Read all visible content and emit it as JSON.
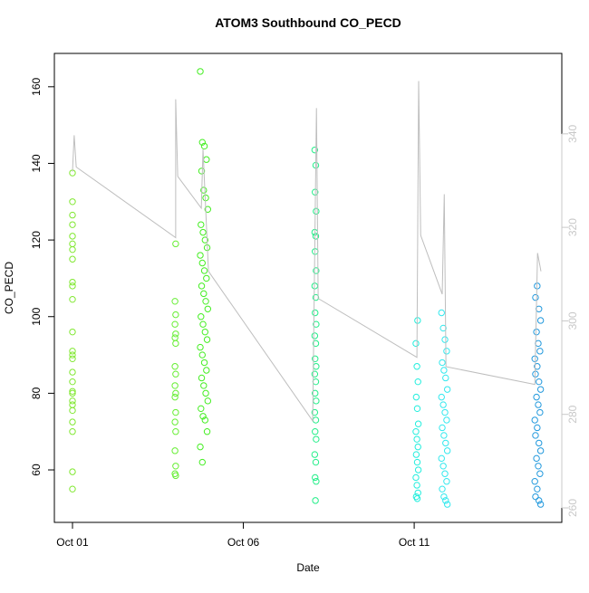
{
  "chart_data": {
    "type": "scatter",
    "title": "ATOM3 Southbound CO_PECD",
    "xlabel": "Date",
    "ylabel": "CO_PECD",
    "xlim": [
      0.47,
      15.32
    ],
    "xticks": [
      {
        "value": 1,
        "label": "Oct 01"
      },
      {
        "value": 6,
        "label": "Oct 06"
      },
      {
        "value": 11,
        "label": "Oct 11"
      }
    ],
    "ylim": [
      46.3,
      168.7
    ],
    "yticks": [
      60,
      80,
      100,
      120,
      140,
      160
    ],
    "y2lim": [
      256.9,
      357.2
    ],
    "y2ticks": [
      260,
      280,
      300,
      320,
      340
    ],
    "y2color": "#c8c8c8",
    "series": [
      {
        "color": "#80e830",
        "x": [
          1,
          1,
          1,
          1,
          1,
          1,
          1,
          1,
          1,
          1,
          1,
          1,
          1,
          1,
          1,
          1,
          1,
          1,
          1,
          1,
          1,
          1,
          1,
          1,
          1,
          1
        ],
        "values": [
          137.5,
          130,
          126.5,
          124,
          121,
          119,
          117.5,
          115,
          109,
          108,
          104.5,
          96,
          91,
          90,
          89,
          85.5,
          83,
          80.5,
          80,
          78,
          77,
          75.5,
          72.5,
          70,
          59.5,
          55
        ]
      },
      {
        "color": "#66ee33",
        "x": [
          4.02,
          4.0,
          4.02,
          4.0,
          4.02,
          4.0,
          4.02,
          4.0,
          4.02,
          4.0,
          4.02,
          4.0,
          4.02,
          4.0,
          4.02,
          4.0,
          4.02,
          4.0,
          4.02
        ],
        "values": [
          119,
          104,
          100.5,
          98,
          95.5,
          94.5,
          93,
          87,
          85,
          82,
          80,
          79,
          75,
          72.5,
          70,
          65,
          61,
          59,
          58.5
        ]
      },
      {
        "color": "#44ee22",
        "x": [
          4.74,
          4.8,
          4.86,
          4.92,
          4.78,
          4.84,
          4.9,
          4.96,
          4.76,
          4.82,
          4.88,
          4.94,
          4.74,
          4.8,
          4.86,
          4.92,
          4.78,
          4.84,
          4.9,
          4.96,
          4.76,
          4.82,
          4.88,
          4.94,
          4.74,
          4.8,
          4.86,
          4.92,
          4.78,
          4.84,
          4.9,
          4.96,
          4.76,
          4.82,
          4.88,
          4.94,
          4.74,
          4.8
        ],
        "values": [
          164,
          145.5,
          144.5,
          141,
          138,
          133,
          131,
          128,
          124,
          122,
          120,
          118,
          116,
          114,
          112,
          110,
          108,
          106,
          104,
          102,
          100,
          98,
          96,
          94,
          92,
          90,
          88,
          86,
          84,
          82,
          80,
          78,
          76,
          74,
          73,
          70,
          66,
          62
        ]
      },
      {
        "color": "#22ee88",
        "x": [
          8.09,
          8.12,
          8.1,
          8.13,
          8.09,
          8.12,
          8.1,
          8.13,
          8.09,
          8.12,
          8.1,
          8.13,
          8.09,
          8.12,
          8.1,
          8.13,
          8.09,
          8.12,
          8.1,
          8.13,
          8.09,
          8.12,
          8.1,
          8.13,
          8.09,
          8.12,
          8.1,
          8.13,
          8.11
        ],
        "values": [
          143.5,
          139.5,
          132.5,
          127.5,
          122,
          121,
          117,
          112,
          108,
          105,
          101,
          98,
          95,
          93,
          89,
          87,
          85,
          83,
          80,
          78,
          75,
          73,
          70,
          68,
          64,
          62,
          58,
          57,
          52
        ]
      },
      {
        "color": "#22eedd",
        "x": [
          11.1,
          11.05,
          11.08,
          11.11,
          11.06,
          11.09,
          11.12,
          11.05,
          11.08,
          11.11,
          11.06,
          11.09,
          11.12,
          11.05,
          11.08,
          11.11,
          11.06,
          11.09
        ],
        "values": [
          99,
          93,
          87,
          83,
          79,
          76,
          72,
          70,
          68,
          66,
          64,
          62,
          60,
          58,
          56,
          54,
          53,
          52.5
        ]
      },
      {
        "color": "#33e8ee",
        "x": [
          11.8,
          11.85,
          11.9,
          11.95,
          11.82,
          11.87,
          11.92,
          11.97,
          11.8,
          11.85,
          11.9,
          11.95,
          11.82,
          11.87,
          11.92,
          11.97,
          11.8,
          11.85,
          11.9,
          11.95,
          11.82,
          11.87,
          11.92,
          11.97
        ],
        "values": [
          101,
          97,
          94,
          91,
          88,
          86,
          84,
          81,
          79,
          77,
          75,
          73,
          71,
          69,
          67,
          65,
          63,
          61,
          59,
          57,
          55,
          53,
          52,
          51
        ]
      },
      {
        "color": "#2299dd",
        "x": [
          14.6,
          14.55,
          14.65,
          14.7,
          14.58,
          14.63,
          14.68,
          14.53,
          14.6,
          14.55,
          14.65,
          14.7,
          14.58,
          14.63,
          14.68,
          14.53,
          14.6,
          14.55,
          14.65,
          14.7,
          14.58,
          14.63,
          14.68,
          14.53,
          14.6,
          14.55,
          14.65,
          14.7
        ],
        "values": [
          108,
          105,
          102,
          99,
          96,
          93,
          91,
          89,
          87,
          85,
          83,
          81,
          79,
          77,
          75,
          73,
          71,
          69,
          67,
          65,
          63,
          61,
          59,
          57,
          55,
          53,
          52,
          51
        ]
      },
      {
        "type": "line",
        "axis": "y2",
        "color": "#bebebe",
        "x": [
          1.0,
          1.05,
          1.11,
          4.02,
          4.02,
          4.08,
          4.77,
          4.82,
          4.98,
          8.03,
          8.14,
          8.19,
          11.08,
          11.13,
          11.19,
          11.82,
          11.88,
          11.93,
          14.53,
          14.61,
          14.71
        ],
        "values": [
          331.9,
          339.7,
          332.9,
          317.8,
          347.4,
          330.9,
          324.1,
          336.7,
          310.6,
          278.6,
          345.5,
          304.8,
          292.2,
          351.3,
          318.3,
          305.7,
          327.1,
          290.2,
          286.4,
          314.5,
          310.6
        ]
      }
    ]
  }
}
